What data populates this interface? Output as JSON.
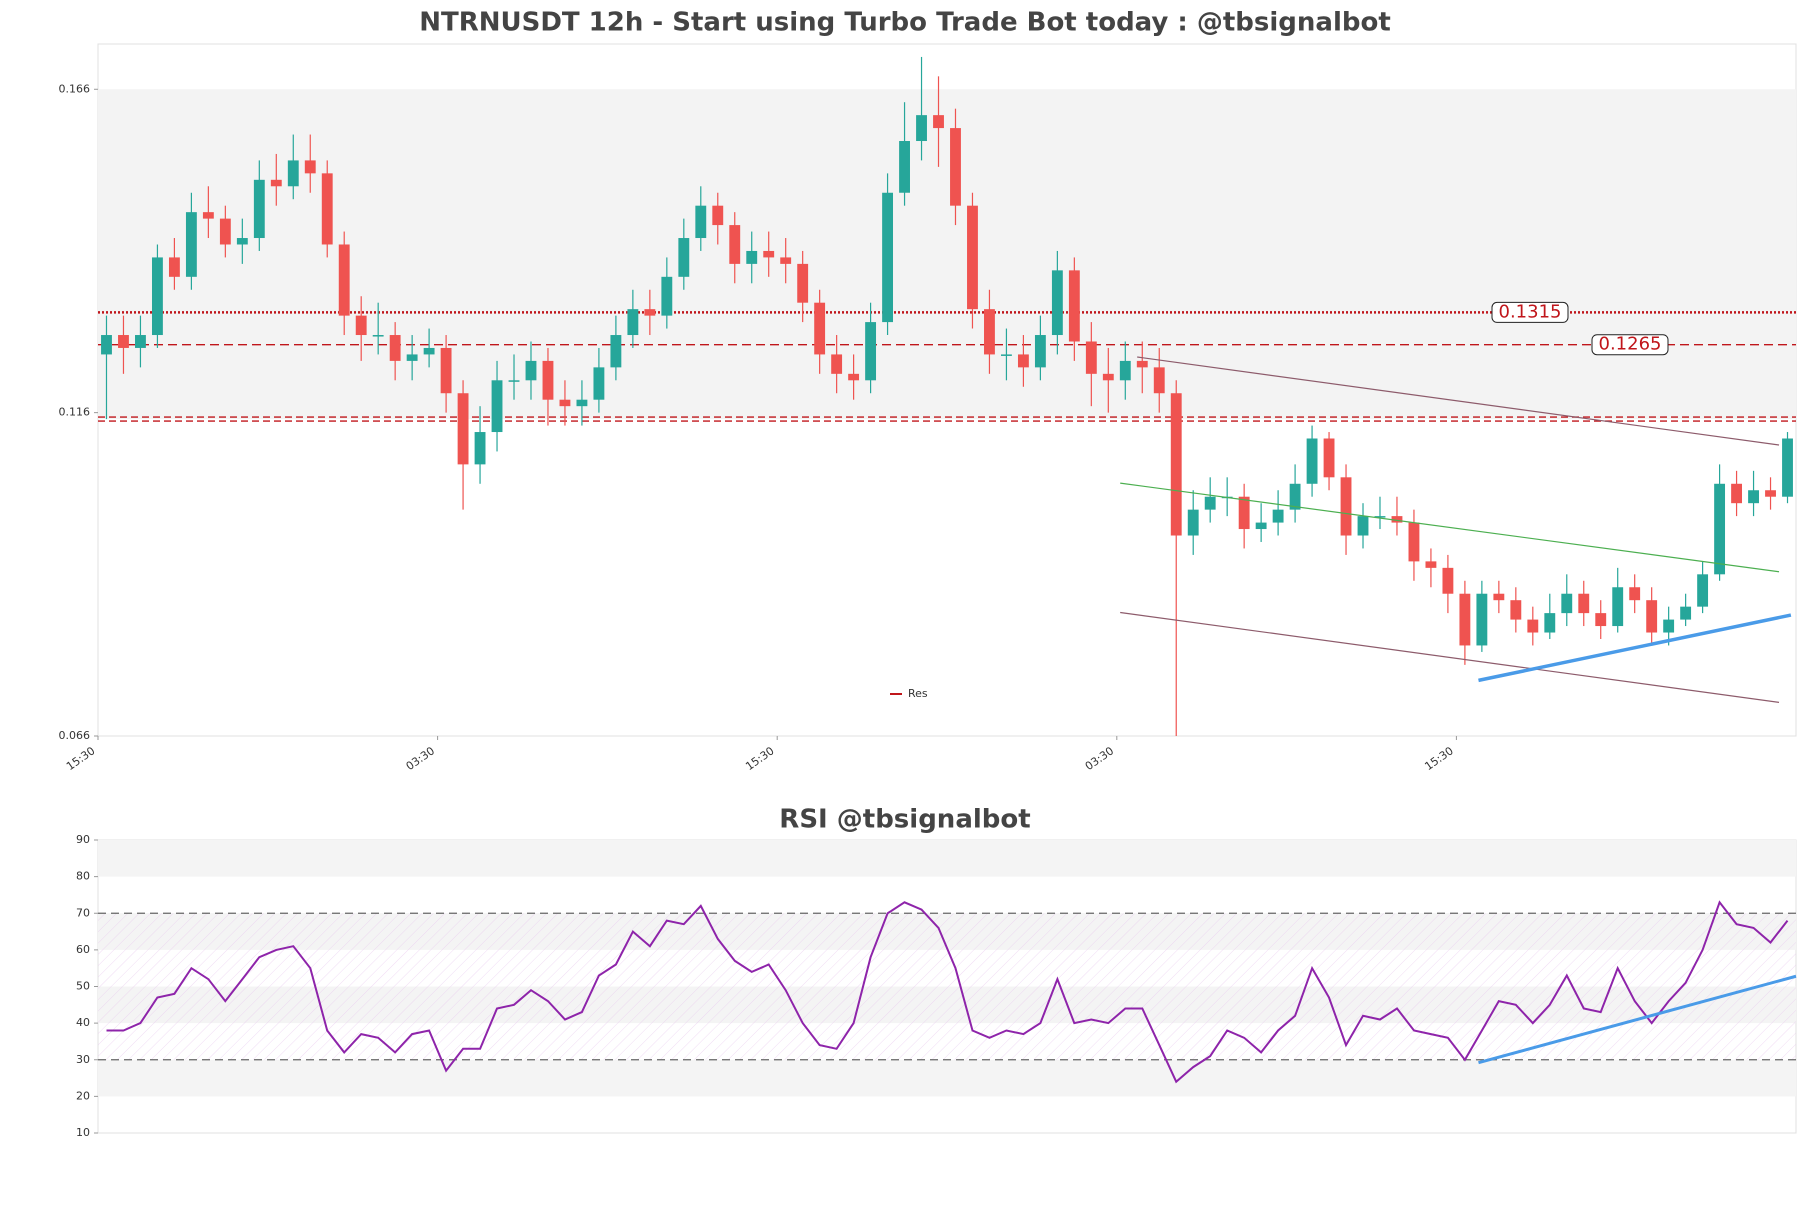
{
  "chart_data": [
    {
      "type": "candlestick",
      "title": "NTRNUSDT 12h - Start using Turbo Trade Bot today : @tbsignalbot",
      "open": [
        0.125,
        0.128,
        0.126,
        0.128,
        0.14,
        0.137,
        0.147,
        0.146,
        0.142,
        0.143,
        0.152,
        0.151,
        0.155,
        0.153,
        0.142,
        0.131,
        0.128,
        0.128,
        0.124,
        0.125,
        0.126,
        0.119,
        0.108,
        0.113,
        0.121,
        0.121,
        0.124,
        0.118,
        0.117,
        0.118,
        0.123,
        0.128,
        0.132,
        0.131,
        0.137,
        0.143,
        0.148,
        0.145,
        0.139,
        0.141,
        0.14,
        0.139,
        0.133,
        0.125,
        0.122,
        0.121,
        0.13,
        0.15,
        0.158,
        0.162,
        0.16,
        0.148,
        0.132,
        0.125,
        0.125,
        0.123,
        0.128,
        0.138,
        0.127,
        0.122,
        0.121,
        0.124,
        0.123,
        0.119,
        0.097,
        0.101,
        0.103,
        0.103,
        0.098,
        0.099,
        0.101,
        0.105,
        0.112,
        0.106,
        0.097,
        0.1,
        0.1,
        0.099,
        0.093,
        0.092,
        0.088,
        0.08,
        0.088,
        0.087,
        0.084,
        0.082,
        0.085,
        0.088,
        0.085,
        0.083,
        0.089,
        0.087,
        0.082,
        0.084,
        0.086,
        0.091,
        0.105,
        0.102,
        0.104,
        0.103
      ],
      "high": [
        0.131,
        0.131,
        0.131,
        0.142,
        0.143,
        0.15,
        0.151,
        0.148,
        0.146,
        0.155,
        0.156,
        0.159,
        0.159,
        0.155,
        0.144,
        0.134,
        0.133,
        0.13,
        0.128,
        0.129,
        0.128,
        0.121,
        0.117,
        0.124,
        0.125,
        0.127,
        0.126,
        0.121,
        0.121,
        0.126,
        0.131,
        0.135,
        0.135,
        0.14,
        0.146,
        0.151,
        0.15,
        0.147,
        0.144,
        0.144,
        0.143,
        0.141,
        0.135,
        0.128,
        0.125,
        0.133,
        0.153,
        0.164,
        0.171,
        0.168,
        0.163,
        0.15,
        0.135,
        0.129,
        0.128,
        0.131,
        0.141,
        0.14,
        0.13,
        0.126,
        0.127,
        0.127,
        0.126,
        0.121,
        0.104,
        0.106,
        0.106,
        0.105,
        0.102,
        0.104,
        0.108,
        0.114,
        0.113,
        0.108,
        0.102,
        0.103,
        0.103,
        0.101,
        0.095,
        0.094,
        0.09,
        0.09,
        0.09,
        0.089,
        0.086,
        0.088,
        0.091,
        0.09,
        0.087,
        0.092,
        0.091,
        0.089,
        0.086,
        0.088,
        0.093,
        0.108,
        0.107,
        0.107,
        0.106,
        0.113
      ],
      "low": [
        0.115,
        0.122,
        0.123,
        0.126,
        0.135,
        0.135,
        0.143,
        0.14,
        0.139,
        0.141,
        0.148,
        0.149,
        0.15,
        0.14,
        0.128,
        0.124,
        0.125,
        0.121,
        0.121,
        0.123,
        0.116,
        0.101,
        0.105,
        0.11,
        0.118,
        0.118,
        0.114,
        0.114,
        0.114,
        0.116,
        0.121,
        0.126,
        0.128,
        0.129,
        0.135,
        0.141,
        0.142,
        0.136,
        0.136,
        0.137,
        0.136,
        0.13,
        0.122,
        0.119,
        0.118,
        0.119,
        0.128,
        0.148,
        0.155,
        0.154,
        0.145,
        0.129,
        0.122,
        0.121,
        0.12,
        0.121,
        0.125,
        0.124,
        0.117,
        0.116,
        0.118,
        0.119,
        0.116,
        0.066,
        0.094,
        0.099,
        0.1,
        0.095,
        0.096,
        0.097,
        0.099,
        0.103,
        0.104,
        0.094,
        0.095,
        0.098,
        0.097,
        0.09,
        0.089,
        0.085,
        0.077,
        0.079,
        0.085,
        0.082,
        0.08,
        0.081,
        0.083,
        0.083,
        0.081,
        0.082,
        0.085,
        0.08,
        0.08,
        0.083,
        0.085,
        0.09,
        0.1,
        0.1,
        0.101,
        0.102
      ],
      "close": [
        0.128,
        0.126,
        0.128,
        0.14,
        0.137,
        0.147,
        0.146,
        0.142,
        0.143,
        0.152,
        0.151,
        0.155,
        0.153,
        0.142,
        0.131,
        0.128,
        0.128,
        0.124,
        0.125,
        0.126,
        0.119,
        0.108,
        0.113,
        0.121,
        0.121,
        0.124,
        0.118,
        0.117,
        0.118,
        0.123,
        0.128,
        0.132,
        0.131,
        0.137,
        0.143,
        0.148,
        0.145,
        0.139,
        0.141,
        0.14,
        0.139,
        0.133,
        0.125,
        0.122,
        0.121,
        0.13,
        0.15,
        0.158,
        0.162,
        0.16,
        0.148,
        0.132,
        0.125,
        0.125,
        0.123,
        0.128,
        0.138,
        0.127,
        0.122,
        0.121,
        0.124,
        0.123,
        0.119,
        0.097,
        0.101,
        0.103,
        0.103,
        0.098,
        0.099,
        0.101,
        0.105,
        0.112,
        0.106,
        0.097,
        0.1,
        0.1,
        0.099,
        0.093,
        0.092,
        0.088,
        0.08,
        0.088,
        0.087,
        0.084,
        0.082,
        0.085,
        0.088,
        0.085,
        0.083,
        0.089,
        0.087,
        0.082,
        0.084,
        0.086,
        0.091,
        0.105,
        0.102,
        0.104,
        0.103,
        0.112
      ],
      "up_color": "#26a69a",
      "down_color": "#ef5350",
      "xlim": [
        0,
        100
      ],
      "xticks": [
        {
          "value": 0,
          "label": "15:30"
        },
        {
          "value": 20,
          "label": "03:30"
        },
        {
          "value": 40,
          "label": "15:30"
        },
        {
          "value": 60,
          "label": "03:30"
        },
        {
          "value": 80,
          "label": "15:30"
        }
      ],
      "ylim": [
        0.066,
        0.173
      ],
      "yticks": [
        0.066,
        0.116,
        0.166
      ],
      "zone": [
        0.115,
        0.166
      ],
      "levels": [
        {
          "value": 0.1315,
          "style": "dotted",
          "show_label": true
        },
        {
          "value": 0.1265,
          "style": "dashed",
          "show_label": true
        },
        {
          "value": 0.115,
          "style": "double",
          "show_label": false
        }
      ],
      "level_color": "#c0161b",
      "trendlines": [
        {
          "x": [
            61.2,
            99.0
          ],
          "y": [
            0.1246,
            0.111
          ],
          "color": "#8d5b6b",
          "width": 1.2
        },
        {
          "x": [
            60.2,
            99.0
          ],
          "y": [
            0.1051,
            0.0914
          ],
          "color": "#4caf50",
          "width": 1.2
        },
        {
          "x": [
            60.2,
            99.0
          ],
          "y": [
            0.0851,
            0.0712
          ],
          "color": "#8d5b6b",
          "width": 1.2
        },
        {
          "x": [
            81.3,
            99.7
          ],
          "y": [
            0.0746,
            0.0847
          ],
          "color": "#4a9be8",
          "width": 3.5
        }
      ],
      "legend": {
        "entries": [
          {
            "name": "Res",
            "color": "#c0161b"
          }
        ],
        "loc": "lower center"
      }
    },
    {
      "type": "line",
      "title": "RSI @tbsignalbot",
      "values": [
        38,
        38,
        40,
        47,
        48,
        55,
        52,
        46,
        52,
        58,
        60,
        61,
        55,
        38,
        32,
        37,
        36,
        32,
        37,
        38,
        27,
        33,
        33,
        44,
        45,
        49,
        46,
        41,
        43,
        53,
        56,
        65,
        61,
        68,
        67,
        72,
        63,
        57,
        54,
        56,
        49,
        40,
        34,
        33,
        40,
        58,
        70,
        73,
        71,
        66,
        55,
        38,
        36,
        38,
        37,
        40,
        52,
        40,
        41,
        40,
        44,
        44,
        34,
        24,
        28,
        31,
        38,
        36,
        32,
        38,
        42,
        55,
        47,
        34,
        42,
        41,
        44,
        38,
        37,
        36,
        30,
        38,
        46,
        45,
        40,
        45,
        53,
        44,
        43,
        55,
        46,
        40,
        46,
        51,
        60,
        73,
        67,
        66,
        62,
        68
      ],
      "color": "#8e24aa",
      "xlim": [
        0,
        100
      ],
      "ylim": [
        10,
        90
      ],
      "yticks": [
        10,
        20,
        30,
        40,
        50,
        60,
        70,
        80,
        90
      ],
      "hlines": [
        30,
        70
      ],
      "trendlines": [
        {
          "x": [
            81.3,
            100
          ],
          "y": [
            29.2,
            52.8
          ],
          "color": "#4a9be8",
          "width": 3
        }
      ]
    }
  ]
}
